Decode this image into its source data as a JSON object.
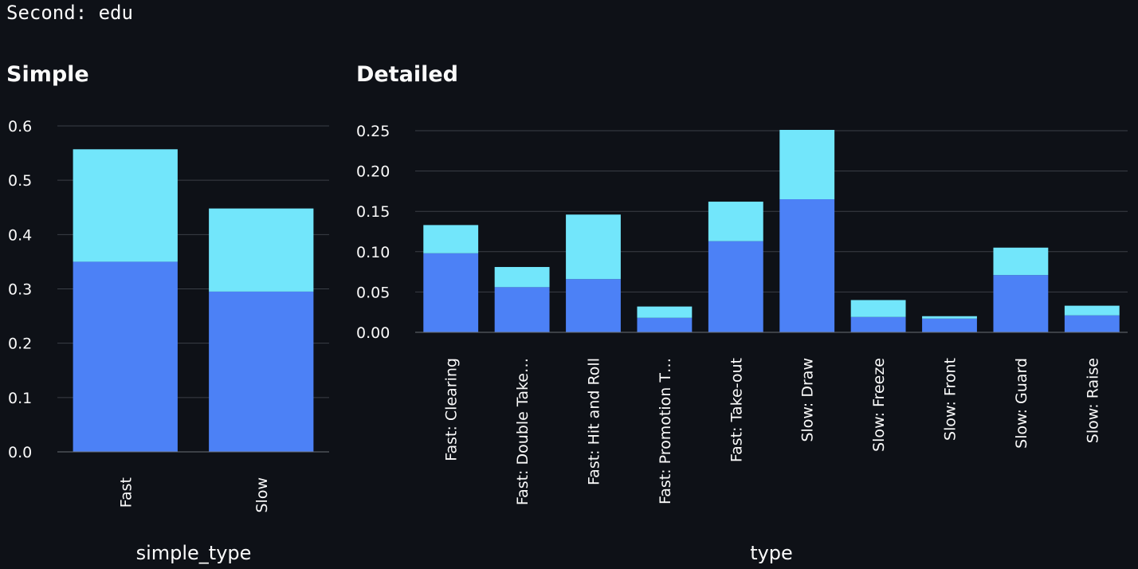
{
  "header": {
    "code_text": "Second: edu"
  },
  "sections": {
    "simple_title": "Simple",
    "detailed_title": "Detailed"
  },
  "colors": {
    "lower": "#4c81f6",
    "upper": "#72e6fb",
    "grid": "#3b3f47"
  },
  "chart_data": [
    {
      "type": "bar",
      "stacked": true,
      "title": "Simple",
      "xlabel": "simple_type",
      "ylabel": "",
      "categories": [
        "Fast",
        "Slow"
      ],
      "series": [
        {
          "values": [
            0.35,
            0.295
          ]
        },
        {
          "values": [
            0.207,
            0.153
          ]
        }
      ],
      "ylim": [
        0,
        0.6
      ],
      "yticks": [
        "0.0",
        "0.1",
        "0.2",
        "0.3",
        "0.4",
        "0.5",
        "0.6"
      ],
      "grid": true
    },
    {
      "type": "bar",
      "stacked": true,
      "title": "Detailed",
      "xlabel": "type",
      "ylabel": "",
      "categories": [
        "Fast: Clearing",
        "Fast: Double Take…",
        "Fast: Hit and Roll",
        "Fast: Promotion T…",
        "Fast: Take-out",
        "Slow: Draw",
        "Slow: Freeze",
        "Slow: Front",
        "Slow: Guard",
        "Slow: Raise"
      ],
      "series": [
        {
          "values": [
            0.098,
            0.056,
            0.066,
            0.018,
            0.113,
            0.165,
            0.019,
            0.017,
            0.071,
            0.021
          ]
        },
        {
          "values": [
            0.035,
            0.025,
            0.08,
            0.014,
            0.049,
            0.086,
            0.021,
            0.003,
            0.034,
            0.012
          ]
        }
      ],
      "ylim": [
        0,
        0.25
      ],
      "yticks": [
        "0.00",
        "0.05",
        "0.10",
        "0.15",
        "0.20",
        "0.25"
      ],
      "grid": true
    }
  ]
}
